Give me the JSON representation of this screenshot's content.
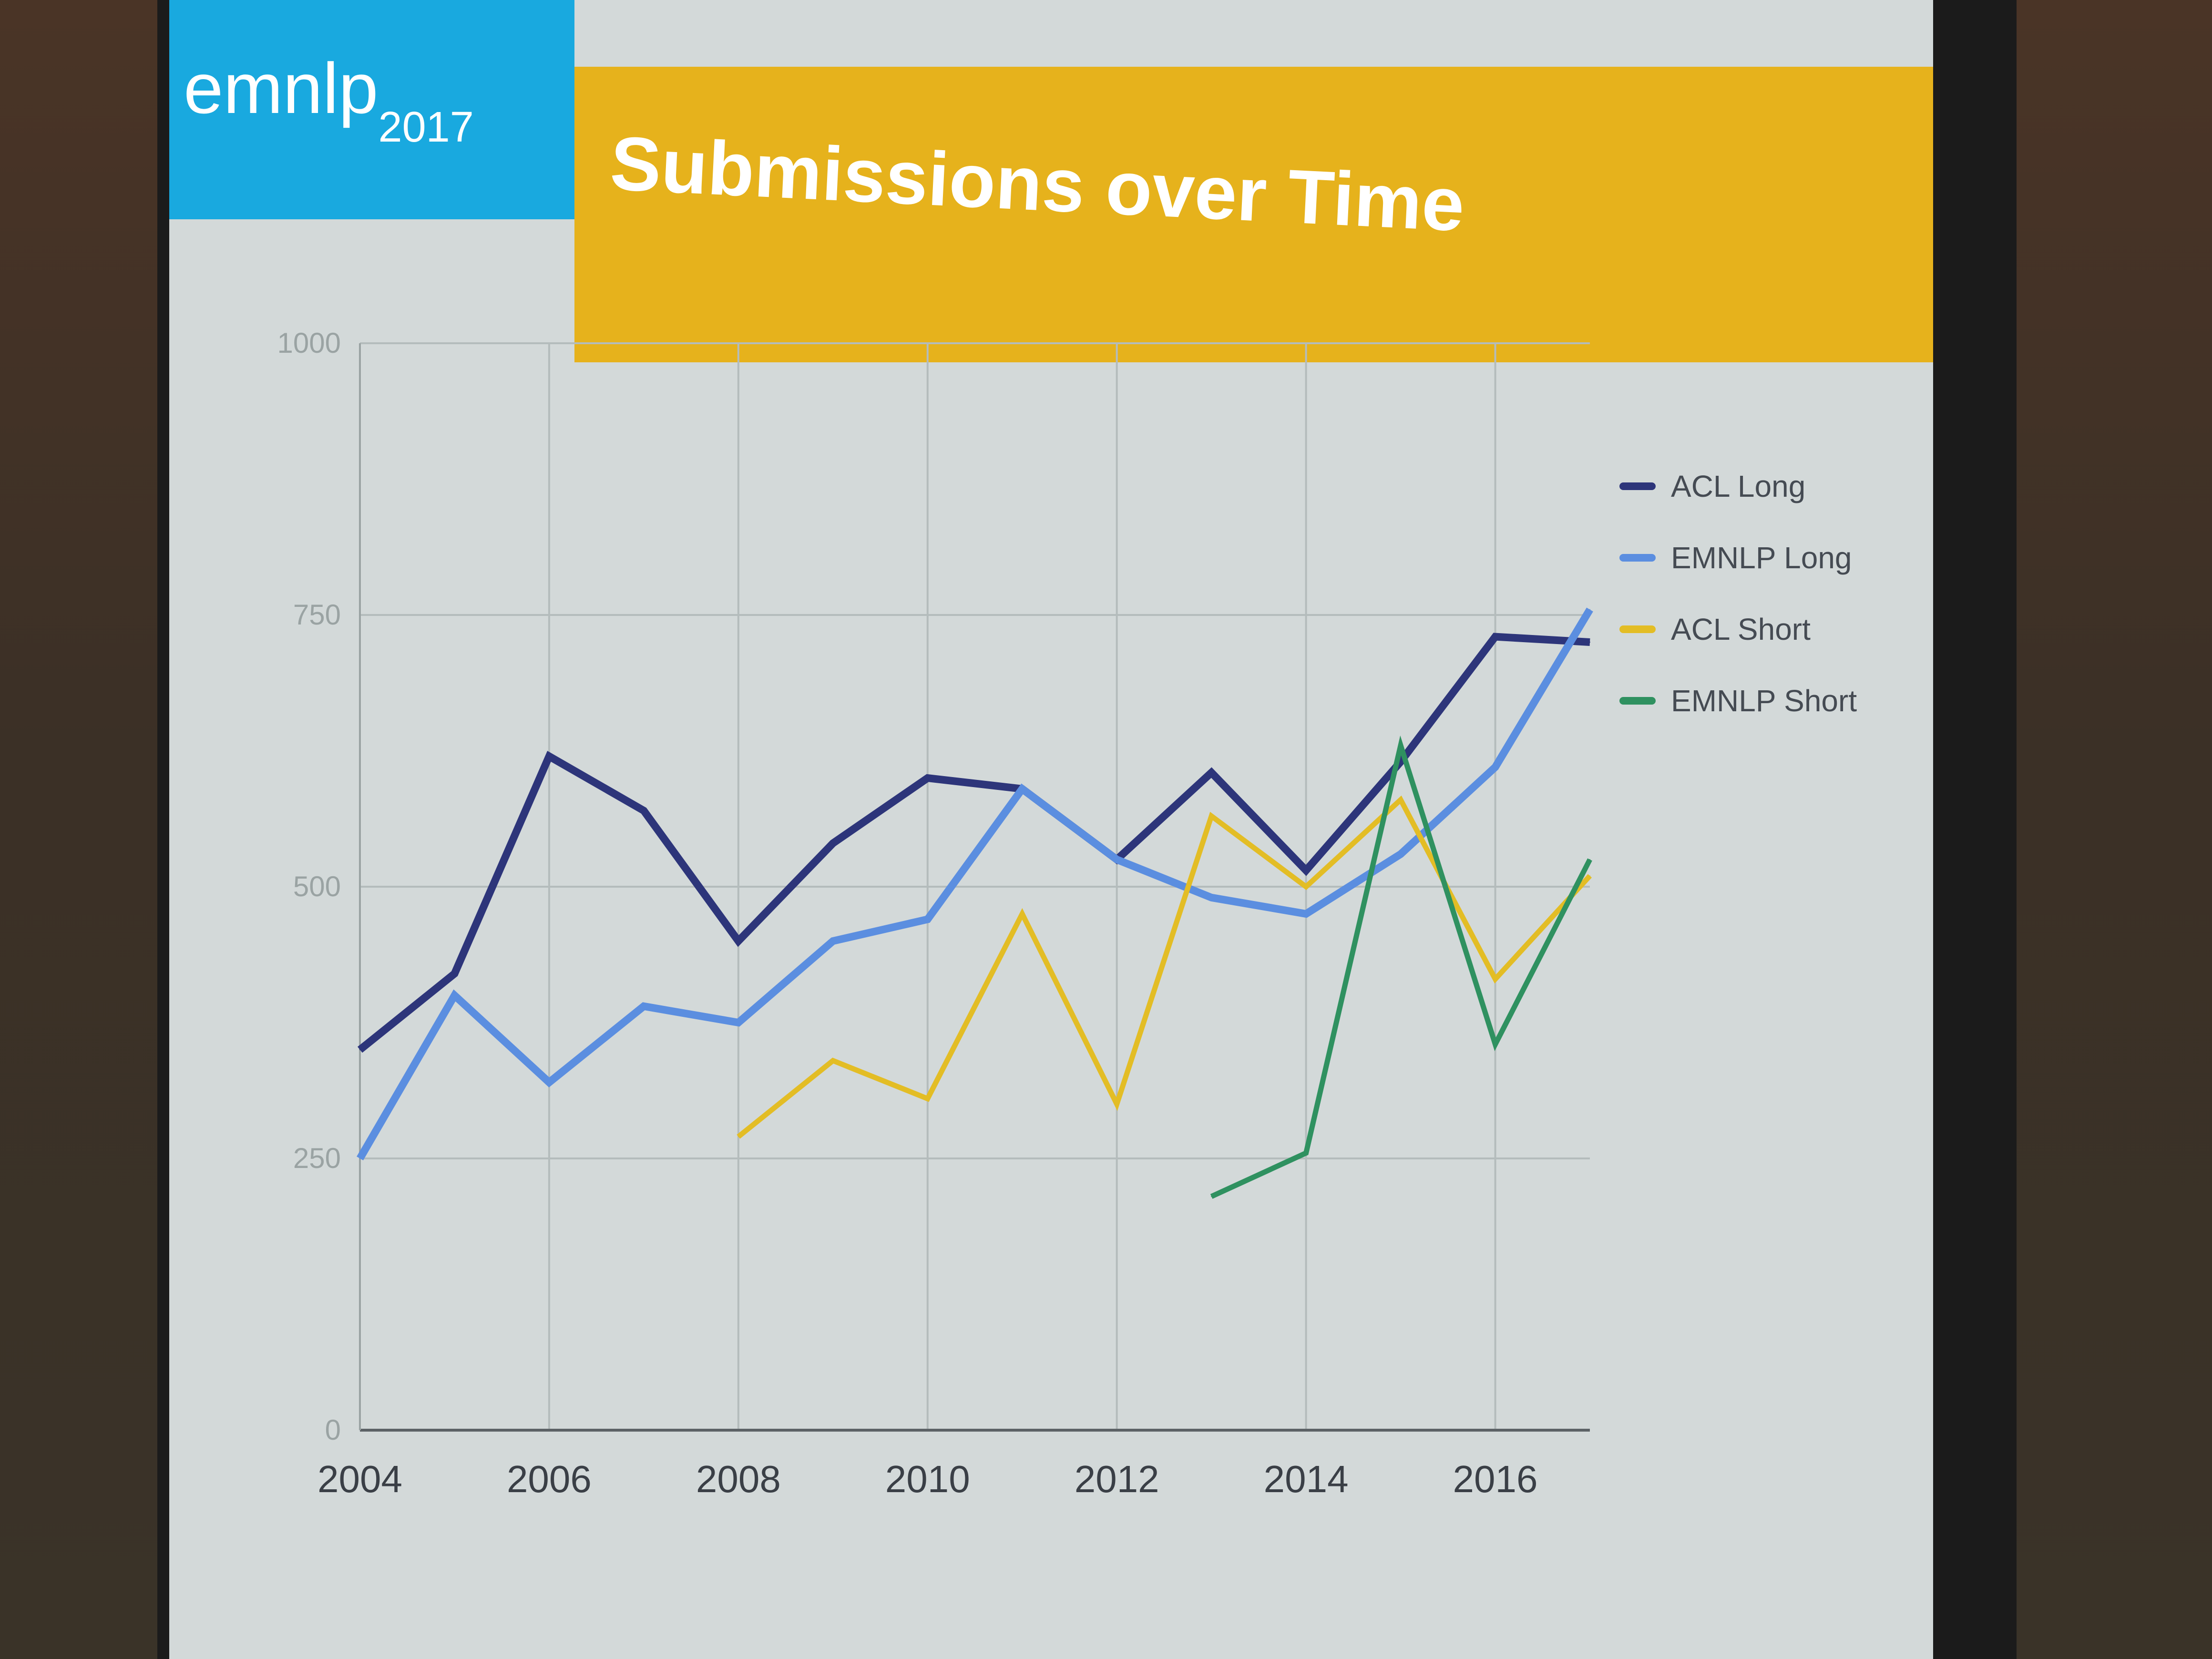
{
  "slide": {
    "brand": "emnlp",
    "brand_year": "2017",
    "title": "Submissions over Time"
  },
  "colors": {
    "acl_long": "#2d357a",
    "emnlp_long": "#5b8ee0",
    "acl_short": "#e3bd25",
    "emnlp_short": "#2f9160",
    "slide_bg": "#d3d9d9",
    "logo_blue": "#19a9df",
    "title_yellow": "#e6b21c"
  },
  "chart_data": {
    "type": "line",
    "title": "Submissions over Time",
    "xlabel": "",
    "ylabel": "",
    "x": [
      2004,
      2005,
      2006,
      2007,
      2008,
      2009,
      2010,
      2011,
      2012,
      2013,
      2014,
      2015,
      2016,
      2017
    ],
    "xticks": [
      "2004",
      "2006",
      "2008",
      "2010",
      "2012",
      "2014",
      "2016"
    ],
    "xtick_values": [
      2004,
      2006,
      2008,
      2010,
      2012,
      2014,
      2016
    ],
    "yticks": [
      "0",
      "250",
      "500",
      "750",
      "1000"
    ],
    "ytick_values": [
      0,
      250,
      500,
      750,
      1000
    ],
    "ylim": [
      0,
      1000
    ],
    "xlim": [
      2004,
      2017
    ],
    "grid": true,
    "legend_position": "right",
    "series": [
      {
        "name": "ACL Long",
        "color_key": "acl_long",
        "values": [
          350,
          420,
          620,
          570,
          450,
          540,
          600,
          590,
          525,
          605,
          515,
          615,
          730,
          725
        ]
      },
      {
        "name": "EMNLP Long",
        "color_key": "emnlp_long",
        "values": [
          250,
          400,
          320,
          390,
          375,
          450,
          470,
          590,
          525,
          490,
          475,
          530,
          610,
          755
        ]
      },
      {
        "name": "ACL Short",
        "color_key": "acl_short",
        "values": [
          null,
          null,
          null,
          null,
          270,
          340,
          305,
          475,
          300,
          565,
          500,
          580,
          415,
          510
        ]
      },
      {
        "name": "EMNLP Short",
        "color_key": "emnlp_short",
        "values": [
          null,
          null,
          null,
          null,
          null,
          null,
          null,
          null,
          null,
          215,
          255,
          630,
          355,
          525
        ]
      }
    ]
  }
}
